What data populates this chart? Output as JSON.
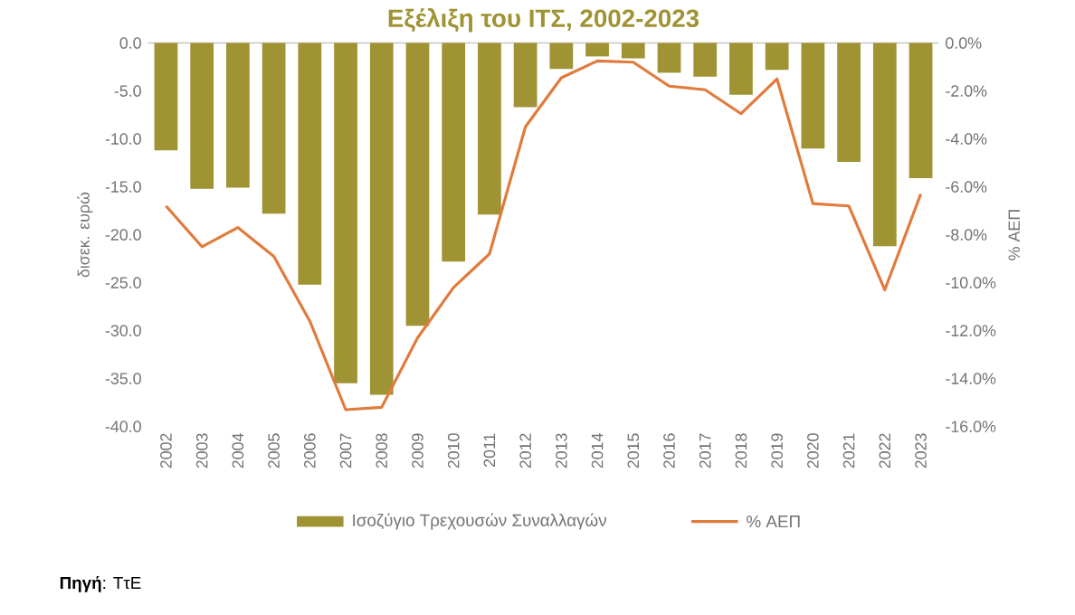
{
  "chart_data": {
    "type": "bar",
    "title": "Εξέλιξη του ΙΤΣ, 2002-2023",
    "categories": [
      "2002",
      "2003",
      "2004",
      "2005",
      "2006",
      "2007",
      "2008",
      "2009",
      "2010",
      "2011",
      "2012",
      "2013",
      "2014",
      "2015",
      "2016",
      "2017",
      "2018",
      "2019",
      "2020",
      "2021",
      "2022",
      "2023"
    ],
    "series": [
      {
        "name": "Ισοζύγιο Τρεχουσών Συναλλαγών",
        "color": "#9f9333",
        "values": [
          -11.2,
          -15.2,
          -15.1,
          -17.8,
          -25.2,
          -35.5,
          -36.7,
          -29.5,
          -22.8,
          -17.9,
          -6.7,
          -2.7,
          -1.4,
          -1.6,
          -3.1,
          -3.5,
          -5.4,
          -2.8,
          -11.0,
          -12.4,
          -21.2,
          -14.1
        ]
      },
      {
        "name": "% ΑΕΠ",
        "type": "line",
        "axis": "y2",
        "color": "#e07b3c",
        "values": [
          -6.8,
          -8.5,
          -7.7,
          -8.9,
          -11.6,
          -15.3,
          -15.2,
          -12.3,
          -10.2,
          -8.8,
          -3.5,
          -1.45,
          -0.75,
          -0.8,
          -1.8,
          -1.95,
          -2.95,
          -1.5,
          -6.7,
          -6.8,
          -10.3,
          -6.3
        ]
      }
    ],
    "ylabel": "δισεκ. ευρώ",
    "y2label": "% ΑΕΠ",
    "ylim": [
      -40,
      0
    ],
    "yticks": [
      {
        "value": -40,
        "label": "-40.0"
      },
      {
        "value": -35,
        "label": "-35.0"
      },
      {
        "value": -30,
        "label": "-30.0"
      },
      {
        "value": -25,
        "label": "-25.0"
      },
      {
        "value": -20,
        "label": "-20.0"
      },
      {
        "value": -15,
        "label": "-15.0"
      },
      {
        "value": -10,
        "label": "-10.0"
      },
      {
        "value": -5,
        "label": "-5.0"
      },
      {
        "value": 0,
        "label": "0.0"
      }
    ],
    "y2lim": [
      -16,
      0
    ],
    "y2ticks": [
      {
        "value": -16,
        "label": "-16.0%"
      },
      {
        "value": -14,
        "label": "-14.0%"
      },
      {
        "value": -12,
        "label": "-12.0%"
      },
      {
        "value": -10,
        "label": "-10.0%"
      },
      {
        "value": -8,
        "label": "-8.0%"
      },
      {
        "value": -6,
        "label": "-6.0%"
      },
      {
        "value": -4,
        "label": "-4.0%"
      },
      {
        "value": -2,
        "label": "-2.0%"
      },
      {
        "value": 0,
        "label": "0.0%"
      }
    ],
    "legend": "bottom",
    "annotations": [
      "**Πηγή**: ΤτΕ"
    ]
  }
}
